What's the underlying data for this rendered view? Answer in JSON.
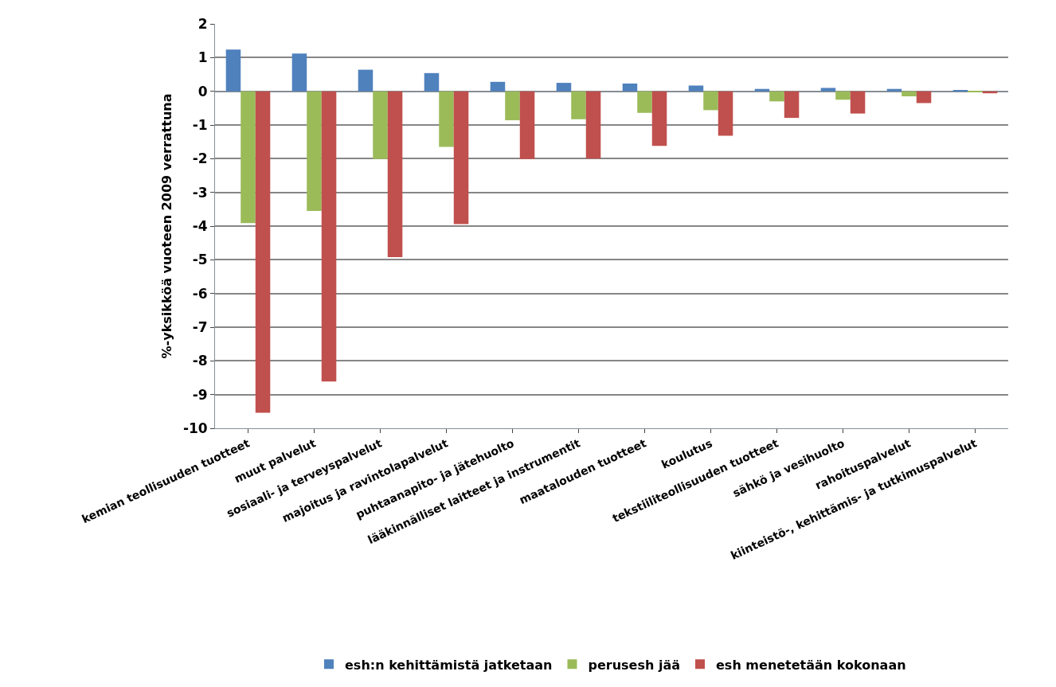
{
  "chart_data": {
    "type": "bar",
    "ylabel": "%-yksikköä vuoteen 2009 verrattuna",
    "categories": [
      "kemian teollisuuden tuotteet",
      "muut palvelut",
      "sosiaali- ja terveyspalvelut",
      "majoitus ja ravintolapalvelut",
      "puhtaanapito- ja jätehuolto",
      "lääkinnälliset laitteet ja instrumentit",
      "maatalouden tuotteet",
      "koulutus",
      "tekstiiliteollisuuden tuotteet",
      "sähkö ja vesihuolto",
      "rahoituspalvelut",
      "kiinteistö-, kehittämis- ja tutkimuspalvelut"
    ],
    "series": [
      {
        "name": "esh:n kehittämistä jatketaan",
        "color": "#4f81bd",
        "values": [
          1.24,
          1.12,
          0.64,
          0.54,
          0.28,
          0.25,
          0.23,
          0.17,
          0.07,
          0.1,
          0.07,
          0.03
        ]
      },
      {
        "name": "perusesh jää",
        "color": "#9bbb59",
        "values": [
          -3.91,
          -3.55,
          -2.01,
          -1.65,
          -0.86,
          -0.83,
          -0.64,
          -0.56,
          -0.3,
          -0.25,
          -0.15,
          -0.03
        ]
      },
      {
        "name": "esh menetetään kokonaan",
        "color": "#c0504d",
        "values": [
          -9.54,
          -8.61,
          -4.92,
          -3.94,
          -2.01,
          -2.0,
          -1.62,
          -1.32,
          -0.79,
          -0.66,
          -0.35,
          -0.06
        ]
      }
    ],
    "ylim": [
      -10,
      2
    ],
    "yticks": [
      -10,
      -9,
      -8,
      -7,
      -6,
      -5,
      -4,
      -3,
      -2,
      -1,
      0,
      1,
      2
    ],
    "grid": "y",
    "legend": "bottom"
  }
}
